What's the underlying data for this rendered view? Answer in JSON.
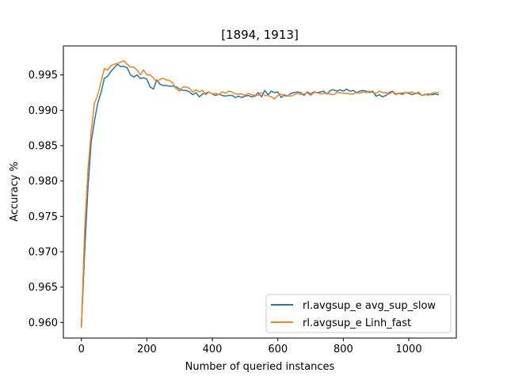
{
  "chart_data": {
    "type": "line",
    "title": "[1894, 1913]",
    "xlabel": "Number of queried instances",
    "ylabel": "Accuracy %",
    "xlim": [
      -55,
      1145
    ],
    "ylim": [
      0.9578,
      0.9991
    ],
    "xticks": [
      0,
      200,
      400,
      600,
      800,
      1000
    ],
    "yticks": [
      0.96,
      0.965,
      0.97,
      0.975,
      0.98,
      0.985,
      0.99,
      0.995
    ],
    "ytick_labels": [
      "0.960",
      "0.965",
      "0.970",
      "0.975",
      "0.980",
      "0.985",
      "0.990",
      "0.995"
    ],
    "grid": false,
    "legend": "lower-right",
    "series": [
      {
        "name": "rl.avgsup_e avg_sup_slow",
        "color": "#1f77b4",
        "x": [
          0,
          10,
          20,
          30,
          40,
          50,
          60,
          70,
          80,
          90,
          100,
          110,
          120,
          130,
          140,
          150,
          160,
          170,
          180,
          190,
          200,
          210,
          220,
          230,
          240,
          250,
          260,
          270,
          280,
          290,
          300,
          310,
          320,
          330,
          340,
          350,
          360,
          370,
          380,
          390,
          400,
          410,
          420,
          430,
          440,
          450,
          460,
          470,
          480,
          490,
          500,
          510,
          520,
          530,
          540,
          550,
          560,
          570,
          580,
          590,
          600,
          610,
          620,
          630,
          640,
          650,
          660,
          670,
          680,
          690,
          700,
          710,
          720,
          730,
          740,
          750,
          760,
          770,
          780,
          790,
          800,
          810,
          820,
          830,
          840,
          850,
          860,
          870,
          880,
          890,
          900,
          910,
          920,
          930,
          940,
          950,
          960,
          970,
          980,
          990,
          1000,
          1010,
          1020,
          1030,
          1040,
          1050,
          1060,
          1070,
          1080,
          1090
        ],
        "values": [
          0.9594,
          0.97,
          0.979,
          0.9855,
          0.9885,
          0.991,
          0.9925,
          0.9945,
          0.9948,
          0.9955,
          0.996,
          0.9965,
          0.9962,
          0.9962,
          0.996,
          0.995,
          0.9947,
          0.995,
          0.9945,
          0.9946,
          0.9944,
          0.9933,
          0.993,
          0.9943,
          0.9937,
          0.9935,
          0.9935,
          0.9934,
          0.9934,
          0.9933,
          0.993,
          0.9928,
          0.9928,
          0.9926,
          0.9922,
          0.9925,
          0.9919,
          0.9923,
          0.9924,
          0.9926,
          0.9923,
          0.9921,
          0.9923,
          0.9921,
          0.992,
          0.9921,
          0.9921,
          0.9918,
          0.992,
          0.9918,
          0.992,
          0.9921,
          0.9919,
          0.992,
          0.9925,
          0.9919,
          0.9928,
          0.9922,
          0.9927,
          0.9925,
          0.9926,
          0.9918,
          0.9922,
          0.992,
          0.9924,
          0.9925,
          0.9926,
          0.9925,
          0.9921,
          0.9926,
          0.9923,
          0.9926,
          0.9925,
          0.9926,
          0.9927,
          0.9923,
          0.9928,
          0.9929,
          0.9927,
          0.9929,
          0.9927,
          0.993,
          0.9927,
          0.9928,
          0.9925,
          0.9927,
          0.9928,
          0.9927,
          0.9925,
          0.9927,
          0.992,
          0.9922,
          0.9919,
          0.9921,
          0.9925,
          0.9927,
          0.9923,
          0.9924,
          0.9924,
          0.9925,
          0.9924,
          0.9922,
          0.9924,
          0.9924,
          0.9921,
          0.9922,
          0.9923,
          0.9922,
          0.9923,
          0.9922
        ]
      },
      {
        "name": "rl.avgsup_e Linh_fast",
        "color": "#ff7f0e",
        "x": [
          0,
          10,
          20,
          30,
          40,
          50,
          60,
          70,
          80,
          90,
          100,
          110,
          120,
          130,
          140,
          150,
          160,
          170,
          180,
          190,
          200,
          210,
          220,
          230,
          240,
          250,
          260,
          270,
          280,
          290,
          300,
          310,
          320,
          330,
          340,
          350,
          360,
          370,
          380,
          390,
          400,
          410,
          420,
          430,
          440,
          450,
          460,
          470,
          480,
          490,
          500,
          510,
          520,
          530,
          540,
          550,
          560,
          570,
          580,
          590,
          600,
          610,
          620,
          630,
          640,
          650,
          660,
          670,
          680,
          690,
          700,
          710,
          720,
          730,
          740,
          750,
          760,
          770,
          780,
          790,
          800,
          810,
          820,
          830,
          840,
          850,
          860,
          870,
          880,
          890,
          900,
          910,
          920,
          930,
          940,
          950,
          960,
          970,
          980,
          990,
          1000,
          1010,
          1020,
          1030,
          1040,
          1050,
          1060,
          1070,
          1080,
          1090
        ],
        "values": [
          0.9593,
          0.973,
          0.9815,
          0.987,
          0.991,
          0.9922,
          0.994,
          0.9959,
          0.9957,
          0.9963,
          0.9965,
          0.9966,
          0.9968,
          0.997,
          0.9965,
          0.9961,
          0.9961,
          0.9957,
          0.995,
          0.9957,
          0.995,
          0.995,
          0.9946,
          0.994,
          0.9944,
          0.9945,
          0.9943,
          0.9942,
          0.9938,
          0.993,
          0.9927,
          0.9933,
          0.9933,
          0.9931,
          0.9926,
          0.9929,
          0.9926,
          0.9928,
          0.9922,
          0.9926,
          0.9923,
          0.9924,
          0.9922,
          0.9926,
          0.9924,
          0.9927,
          0.9926,
          0.9923,
          0.9923,
          0.9923,
          0.9921,
          0.9924,
          0.9922,
          0.9921,
          0.9921,
          0.9925,
          0.9921,
          0.9921,
          0.9919,
          0.9916,
          0.9921,
          0.9923,
          0.992,
          0.9921,
          0.992,
          0.9922,
          0.9924,
          0.9922,
          0.9923,
          0.9925,
          0.9921,
          0.9925,
          0.9925,
          0.9923,
          0.9924,
          0.9924,
          0.9923,
          0.9922,
          0.9925,
          0.9925,
          0.9924,
          0.9924,
          0.9923,
          0.9923,
          0.9925,
          0.9924,
          0.9926,
          0.9925,
          0.9927,
          0.9925,
          0.9924,
          0.9927,
          0.9925,
          0.9925,
          0.9923,
          0.9926,
          0.9922,
          0.9924,
          0.9922,
          0.9925,
          0.9925,
          0.9926,
          0.9923,
          0.9926,
          0.9921,
          0.9923,
          0.9921,
          0.9924,
          0.9925,
          0.9925
        ]
      }
    ]
  }
}
